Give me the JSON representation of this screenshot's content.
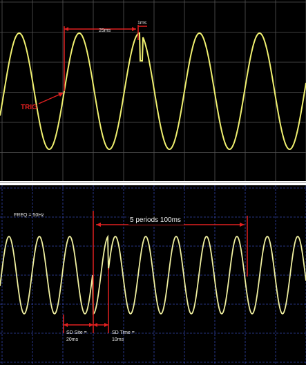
{
  "top_panel": {
    "interval_label": "25ms",
    "glitch_label": "1ms",
    "trigger_label": "TRIG"
  },
  "bottom_panel": {
    "frequency_label": "FREQ = 50Hz",
    "span_label": "5 periods 100ms",
    "site_label": [
      "SD Site =",
      "20ms"
    ],
    "time_label": [
      "SD Time =",
      "10ms"
    ]
  }
}
